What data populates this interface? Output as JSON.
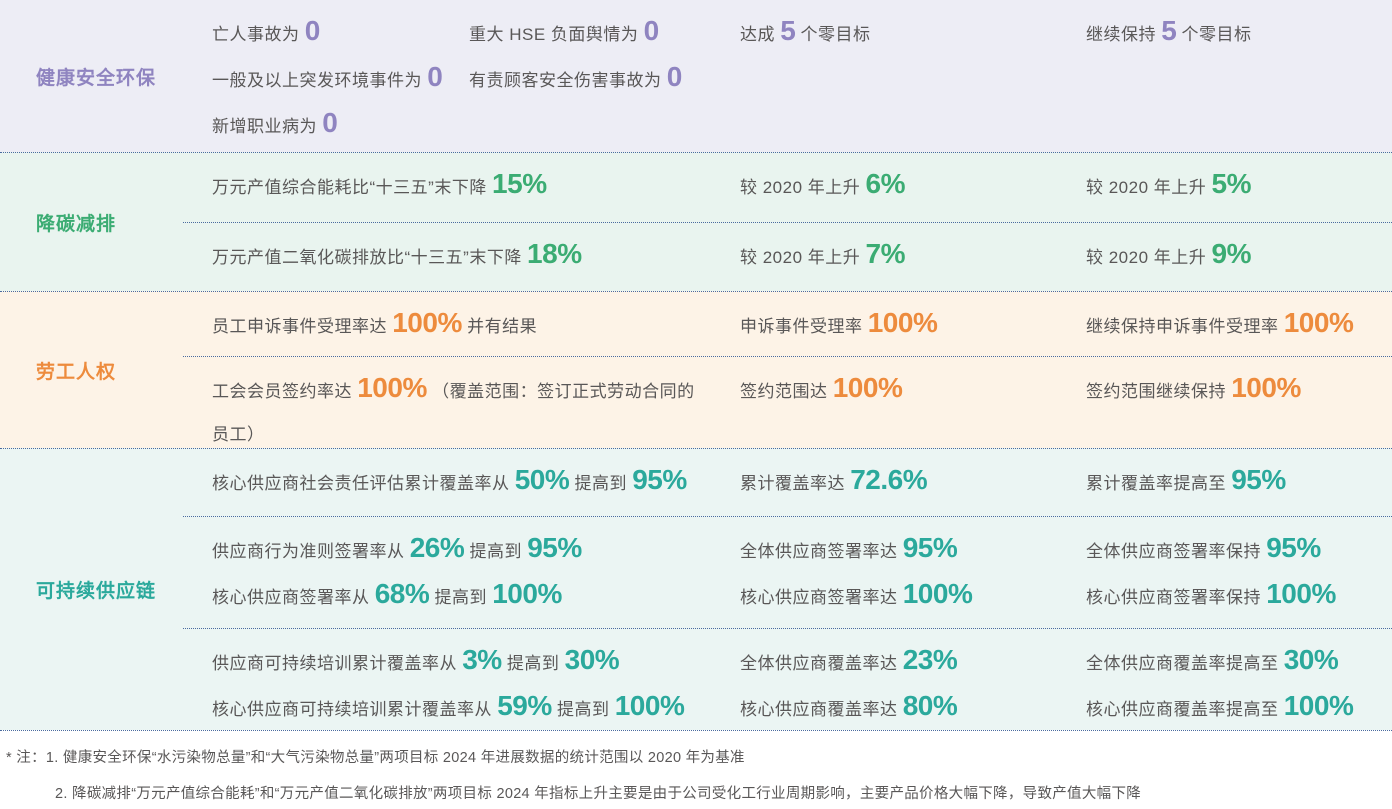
{
  "theme": {
    "divider_color": "#4A6B9F",
    "text_color": "#595757"
  },
  "table": {
    "rows": [
      {
        "id": "hse",
        "category": "健康安全环保",
        "accent": "#8F84C0",
        "bg": "#EDEDF5",
        "subrows": [
          {
            "cells": [
              {
                "type": "target-a",
                "lines": [
                  [
                    {
                      "t": "亡人事故为 "
                    },
                    {
                      "t": "0",
                      "em": true
                    }
                  ],
                  [
                    {
                      "t": "一般及以上突发环境事件为 "
                    },
                    {
                      "t": "0",
                      "em": true
                    }
                  ],
                  [
                    {
                      "t": "新增职业病为 "
                    },
                    {
                      "t": "0",
                      "em": true
                    }
                  ]
                ]
              },
              {
                "type": "target-b",
                "lines": [
                  [
                    {
                      "t": "重大 HSE 负面舆情为 "
                    },
                    {
                      "t": "0",
                      "em": true
                    }
                  ],
                  [
                    {
                      "t": "有责顾客安全伤害事故为 "
                    },
                    {
                      "t": "0",
                      "em": true
                    }
                  ]
                ]
              },
              {
                "type": "progress",
                "lines": [
                  [
                    {
                      "t": "达成 "
                    },
                    {
                      "t": "5",
                      "em": true
                    },
                    {
                      "t": " 个零目标"
                    }
                  ]
                ]
              },
              {
                "type": "future",
                "lines": [
                  [
                    {
                      "t": "继续保持 "
                    },
                    {
                      "t": "5",
                      "em": true
                    },
                    {
                      "t": " 个零目标"
                    }
                  ]
                ]
              }
            ]
          }
        ]
      },
      {
        "id": "carbon",
        "category": "降碳减排",
        "accent": "#3BAC73",
        "bg": "#E9F4EF",
        "subrows": [
          {
            "cells": [
              {
                "type": "target",
                "lines": [
                  [
                    {
                      "t": "万元产值综合能耗比“十三五”末下降 "
                    },
                    {
                      "t": "15%",
                      "em": true
                    }
                  ]
                ]
              },
              {
                "type": "progress",
                "lines": [
                  [
                    {
                      "t": "较 2020 年上升 "
                    },
                    {
                      "t": "6%",
                      "em": true
                    }
                  ]
                ]
              },
              {
                "type": "future",
                "lines": [
                  [
                    {
                      "t": "较 2020 年上升 "
                    },
                    {
                      "t": "5%",
                      "em": true
                    }
                  ]
                ]
              }
            ]
          },
          {
            "cells": [
              {
                "type": "target",
                "lines": [
                  [
                    {
                      "t": "万元产值二氧化碳排放比“十三五”末下降 "
                    },
                    {
                      "t": "18%",
                      "em": true
                    }
                  ]
                ]
              },
              {
                "type": "progress",
                "lines": [
                  [
                    {
                      "t": "较 2020 年上升 "
                    },
                    {
                      "t": "7%",
                      "em": true
                    }
                  ]
                ]
              },
              {
                "type": "future",
                "lines": [
                  [
                    {
                      "t": "较 2020 年上升 "
                    },
                    {
                      "t": "9%",
                      "em": true
                    }
                  ]
                ]
              }
            ]
          }
        ]
      },
      {
        "id": "labor",
        "category": "劳工人权",
        "accent": "#ED8B3D",
        "bg": "#FDF3E7",
        "subrows": [
          {
            "cells": [
              {
                "type": "target",
                "lines": [
                  [
                    {
                      "t": "员工申诉事件受理率达 "
                    },
                    {
                      "t": "100%",
                      "em": true
                    },
                    {
                      "t": " 并有结果"
                    }
                  ]
                ]
              },
              {
                "type": "progress",
                "lines": [
                  [
                    {
                      "t": "申诉事件受理率 "
                    },
                    {
                      "t": "100%",
                      "em": true
                    }
                  ]
                ]
              },
              {
                "type": "future",
                "lines": [
                  [
                    {
                      "t": "继续保持申诉事件受理率 "
                    },
                    {
                      "t": "100%",
                      "em": true
                    }
                  ]
                ]
              }
            ]
          },
          {
            "cells": [
              {
                "type": "target",
                "lines": [
                  [
                    {
                      "t": "工会会员签约率达 "
                    },
                    {
                      "t": "100%",
                      "em": true
                    },
                    {
                      "t": " （覆盖范围：签订正式劳动合同的"
                    }
                  ],
                  [
                    {
                      "t": "员工）"
                    }
                  ]
                ]
              },
              {
                "type": "progress",
                "lines": [
                  [
                    {
                      "t": "签约范围达 "
                    },
                    {
                      "t": "100%",
                      "em": true
                    }
                  ]
                ]
              },
              {
                "type": "future",
                "lines": [
                  [
                    {
                      "t": "签约范围继续保持 "
                    },
                    {
                      "t": "100%",
                      "em": true
                    }
                  ]
                ]
              }
            ]
          }
        ]
      },
      {
        "id": "supply-chain",
        "category": "可持续供应链",
        "accent": "#2BA99C",
        "bg": "#EBF5F3",
        "subrows": [
          {
            "cells": [
              {
                "type": "target",
                "lines": [
                  [
                    {
                      "t": "核心供应商社会责任评估累计覆盖率从 "
                    },
                    {
                      "t": "50%",
                      "em": true
                    },
                    {
                      "t": " 提高到 "
                    },
                    {
                      "t": "95%",
                      "em": true
                    }
                  ]
                ]
              },
              {
                "type": "progress",
                "lines": [
                  [
                    {
                      "t": "累计覆盖率达 "
                    },
                    {
                      "t": "72.6%",
                      "em": true
                    }
                  ]
                ]
              },
              {
                "type": "future",
                "lines": [
                  [
                    {
                      "t": "累计覆盖率提高至 "
                    },
                    {
                      "t": "95%",
                      "em": true
                    }
                  ]
                ]
              }
            ]
          },
          {
            "cells": [
              {
                "type": "target",
                "lines": [
                  [
                    {
                      "t": "供应商行为准则签署率从 "
                    },
                    {
                      "t": "26%",
                      "em": true
                    },
                    {
                      "t": " 提高到 "
                    },
                    {
                      "t": "95%",
                      "em": true
                    }
                  ],
                  [
                    {
                      "t": "核心供应商签署率从 "
                    },
                    {
                      "t": "68%",
                      "em": true
                    },
                    {
                      "t": " 提高到 "
                    },
                    {
                      "t": "100%",
                      "em": true
                    }
                  ]
                ]
              },
              {
                "type": "progress",
                "lines": [
                  [
                    {
                      "t": "全体供应商签署率达 "
                    },
                    {
                      "t": "95%",
                      "em": true
                    }
                  ],
                  [
                    {
                      "t": "核心供应商签署率达 "
                    },
                    {
                      "t": "100%",
                      "em": true
                    }
                  ]
                ]
              },
              {
                "type": "future",
                "lines": [
                  [
                    {
                      "t": "全体供应商签署率保持 "
                    },
                    {
                      "t": "95%",
                      "em": true
                    }
                  ],
                  [
                    {
                      "t": "核心供应商签署率保持 "
                    },
                    {
                      "t": "100%",
                      "em": true
                    }
                  ]
                ]
              }
            ]
          },
          {
            "cells": [
              {
                "type": "target",
                "lines": [
                  [
                    {
                      "t": "供应商可持续培训累计覆盖率从 "
                    },
                    {
                      "t": "3%",
                      "em": true
                    },
                    {
                      "t": " 提高到 "
                    },
                    {
                      "t": "30%",
                      "em": true
                    }
                  ],
                  [
                    {
                      "t": "核心供应商可持续培训累计覆盖率从 "
                    },
                    {
                      "t": "59%",
                      "em": true
                    },
                    {
                      "t": " 提高到 "
                    },
                    {
                      "t": "100%",
                      "em": true
                    }
                  ]
                ]
              },
              {
                "type": "progress",
                "lines": [
                  [
                    {
                      "t": "全体供应商覆盖率达 "
                    },
                    {
                      "t": "23%",
                      "em": true
                    }
                  ],
                  [
                    {
                      "t": "核心供应商覆盖率达 "
                    },
                    {
                      "t": "80%",
                      "em": true
                    }
                  ]
                ]
              },
              {
                "type": "future",
                "lines": [
                  [
                    {
                      "t": "全体供应商覆盖率提高至 "
                    },
                    {
                      "t": "30%",
                      "em": true
                    }
                  ],
                  [
                    {
                      "t": "核心供应商覆盖率提高至 "
                    },
                    {
                      "t": "100%",
                      "em": true
                    }
                  ]
                ]
              }
            ]
          }
        ]
      }
    ]
  },
  "footnote": {
    "prefix": "* 注：",
    "items": [
      "1. 健康安全环保“水污染物总量”和“大气污染物总量”两项目标 2024 年进展数据的统计范围以 2020 年为基准",
      "2. 降碳减排“万元产值综合能耗”和“万元产值二氧化碳排放”两项目标 2024 年指标上升主要是由于公司受化工行业周期影响，主要产品价格大幅下降，导致产值大幅下降"
    ]
  }
}
